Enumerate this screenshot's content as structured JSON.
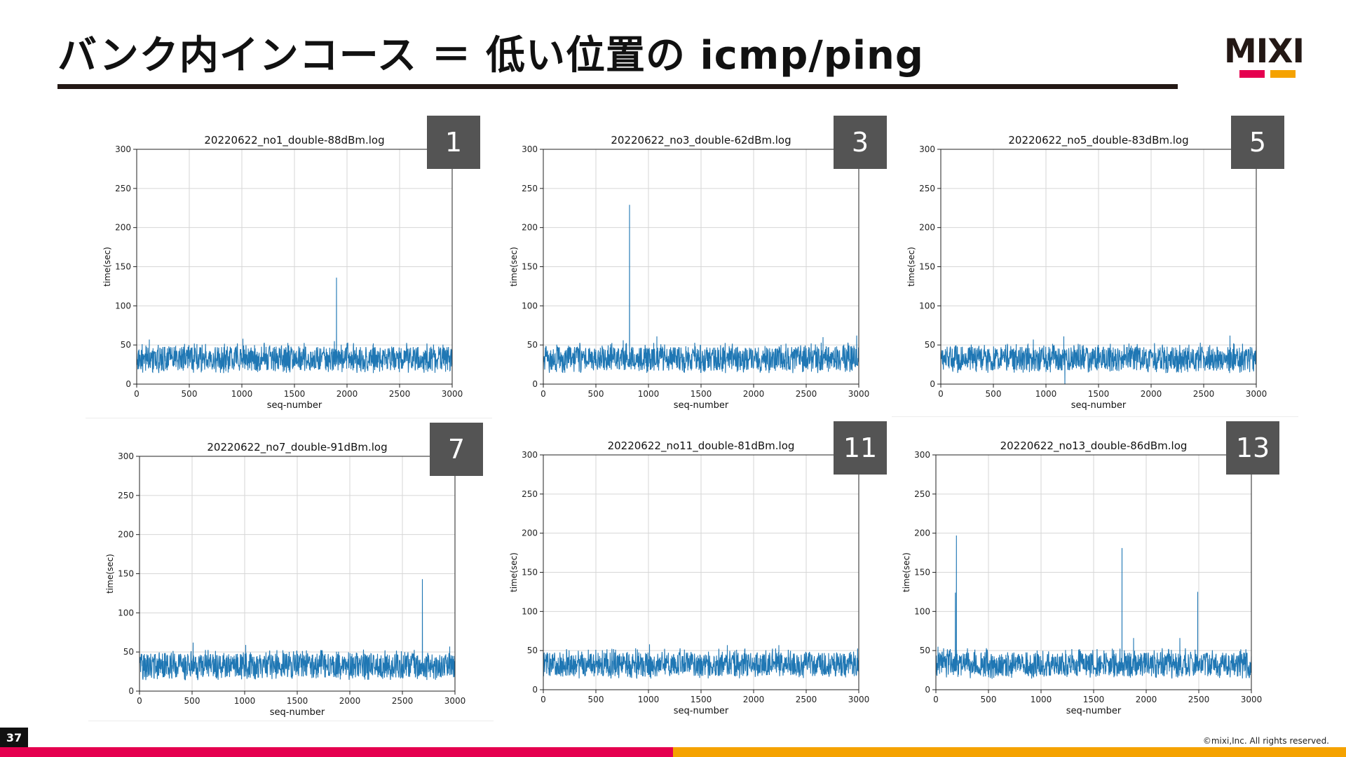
{
  "slide": {
    "title": "バンク内インコース ＝ 低い位置の icmp/ping",
    "page_number": "37",
    "copyright": "©mixi,Inc. All rights reserved.",
    "logo_text": "MIXI",
    "colors": {
      "line": "#1f77b4",
      "accent_red": "#e5004f",
      "accent_yellow": "#f5a200",
      "badge": "#545454"
    }
  },
  "chart_data": [
    {
      "type": "line",
      "badge": "1",
      "title": "20220622_no1_double-88dBm.log",
      "xlabel": "seq-number",
      "ylabel": "time(sec)",
      "xlim": [
        0,
        3000
      ],
      "ylim": [
        0,
        300
      ],
      "xticks": [
        0,
        500,
        1000,
        1500,
        2000,
        2500,
        3000
      ],
      "yticks": [
        0,
        50,
        100,
        150,
        200,
        250,
        300
      ],
      "grid": true,
      "noise": {
        "low": 17,
        "high": 48
      },
      "spikes": [
        {
          "x": 120,
          "y": 57
        },
        {
          "x": 1010,
          "y": 58
        },
        {
          "x": 1900,
          "y": 136
        },
        {
          "x": 1880,
          "y": 55
        },
        {
          "x": 2250,
          "y": 52
        }
      ],
      "dips": []
    },
    {
      "type": "line",
      "badge": "3",
      "title": "20220622_no3_double-62dBm.log",
      "xlabel": "seq-number",
      "ylabel": "time(sec)",
      "xlim": [
        0,
        3000
      ],
      "ylim": [
        0,
        300
      ],
      "xticks": [
        0,
        500,
        1000,
        1500,
        2000,
        2500,
        3000
      ],
      "yticks": [
        0,
        50,
        100,
        150,
        200,
        250,
        300
      ],
      "grid": true,
      "noise": {
        "low": 17,
        "high": 48
      },
      "spikes": [
        {
          "x": 820,
          "y": 229
        },
        {
          "x": 760,
          "y": 56
        },
        {
          "x": 1080,
          "y": 61
        },
        {
          "x": 2660,
          "y": 60
        },
        {
          "x": 2980,
          "y": 62
        }
      ],
      "dips": []
    },
    {
      "type": "line",
      "badge": "5",
      "title": "20220622_no5_double-83dBm.log",
      "xlabel": "seq-number",
      "ylabel": "time(sec)",
      "xlim": [
        0,
        3000
      ],
      "ylim": [
        0,
        300
      ],
      "xticks": [
        0,
        500,
        1000,
        1500,
        2000,
        2500,
        3000
      ],
      "yticks": [
        0,
        50,
        100,
        150,
        200,
        250,
        300
      ],
      "grid": true,
      "noise": {
        "low": 17,
        "high": 48
      },
      "spikes": [
        {
          "x": 1170,
          "y": 61
        },
        {
          "x": 2750,
          "y": 62
        },
        {
          "x": 880,
          "y": 57
        }
      ],
      "dips": [
        {
          "x": 1180,
          "y": 0
        }
      ]
    },
    {
      "type": "line",
      "badge": "7",
      "title": "20220622_no7_double-91dBm.log",
      "xlabel": "seq-number",
      "ylabel": "time(sec)",
      "xlim": [
        0,
        3000
      ],
      "ylim": [
        0,
        300
      ],
      "xticks": [
        0,
        500,
        1000,
        1500,
        2000,
        2500,
        3000
      ],
      "yticks": [
        0,
        50,
        100,
        150,
        200,
        250,
        300
      ],
      "grid": true,
      "noise": {
        "low": 17,
        "high": 48
      },
      "spikes": [
        {
          "x": 2690,
          "y": 143
        },
        {
          "x": 510,
          "y": 62
        },
        {
          "x": 1010,
          "y": 59
        },
        {
          "x": 2950,
          "y": 57
        }
      ],
      "dips": []
    },
    {
      "type": "line",
      "badge": "11",
      "title": "20220622_no11_double-81dBm.log",
      "xlabel": "seq-number",
      "ylabel": "time(sec)",
      "xlim": [
        0,
        3000
      ],
      "ylim": [
        0,
        300
      ],
      "xticks": [
        0,
        500,
        1000,
        1500,
        2000,
        2500,
        3000
      ],
      "yticks": [
        0,
        50,
        100,
        150,
        200,
        250,
        300
      ],
      "grid": true,
      "noise": {
        "low": 17,
        "high": 48
      },
      "spikes": [
        {
          "x": 1010,
          "y": 58
        },
        {
          "x": 1750,
          "y": 57
        },
        {
          "x": 2240,
          "y": 57
        }
      ],
      "dips": []
    },
    {
      "type": "line",
      "badge": "13",
      "title": "20220622_no13_double-86dBm.log",
      "xlabel": "seq-number",
      "ylabel": "time(sec)",
      "xlim": [
        0,
        3000
      ],
      "ylim": [
        0,
        300
      ],
      "xticks": [
        0,
        500,
        1000,
        1500,
        2000,
        2500,
        3000
      ],
      "yticks": [
        0,
        50,
        100,
        150,
        200,
        250,
        300
      ],
      "grid": true,
      "noise": {
        "low": 17,
        "high": 48
      },
      "spikes": [
        {
          "x": 195,
          "y": 197
        },
        {
          "x": 185,
          "y": 124
        },
        {
          "x": 1770,
          "y": 181
        },
        {
          "x": 2490,
          "y": 125
        },
        {
          "x": 2320,
          "y": 66
        },
        {
          "x": 1880,
          "y": 66
        },
        {
          "x": 20,
          "y": 55
        }
      ],
      "dips": []
    }
  ]
}
